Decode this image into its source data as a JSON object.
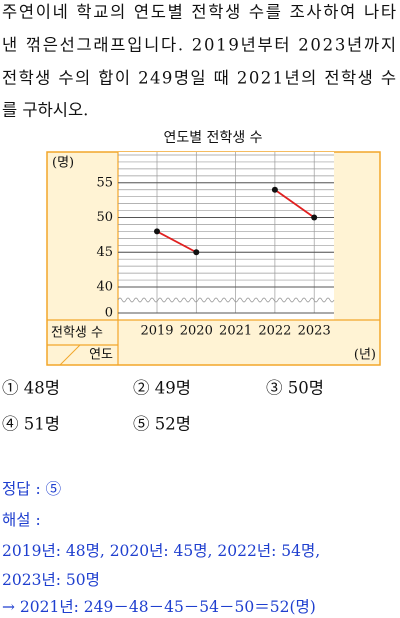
{
  "question_lines": [
    "주연이네 학교의 연도별 전학생 수를 조사하여 나타",
    "낸 꺾은선그래프입니다. 2019년부터 2023년까지",
    "전학생 수의 합이 249명일 때 2021년의 전학생 수",
    "를 구하시오."
  ],
  "chart_data": {
    "type": "line",
    "title": "연도별 전학생 수",
    "y_unit": "(명)",
    "y_axis_label": "전학생 수",
    "x_axis_label": "연도",
    "x_unit": "(년)",
    "categories": [
      "2019",
      "2020",
      "2021",
      "2022",
      "2023"
    ],
    "values": [
      48,
      45,
      null,
      54,
      50
    ],
    "color": "#e02020",
    "marker_color": "#111111",
    "ylim": [
      0,
      59
    ],
    "yticks": [
      0,
      40,
      45,
      50,
      55
    ],
    "y_break": [
      0,
      40
    ],
    "minor_grid_step": 1,
    "grid": true
  },
  "choices": [
    "① 48명",
    "② 49명",
    "③ 50명",
    "④ 51명",
    "⑤ 52명"
  ],
  "answer": "정답 : ⑤",
  "explanation_heading": "해설 :",
  "explanation_lines": [
    "2019년: 48명, 2020년: 45명, 2022년: 54명,",
    "2023년: 50명",
    "→ 2021년: 249－48－45－54－50＝52(명)"
  ]
}
